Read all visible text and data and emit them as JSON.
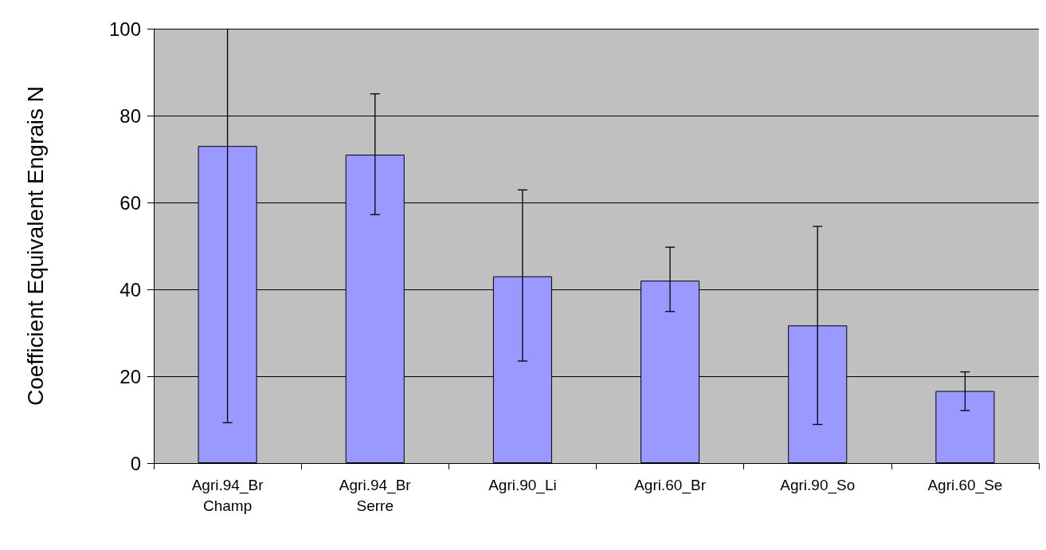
{
  "chart_data": {
    "type": "bar",
    "ylabel": "Coefficient Equivalent Engrais N",
    "categories": [
      "Agri.94_Br\nChamp",
      "Agri.94_Br\nSerre",
      "Agri.90_Li",
      "Agri.60_Br",
      "Agri.90_So",
      "Agri.60_Se"
    ],
    "values": [
      73,
      71,
      43,
      42,
      31.7,
      16.6
    ],
    "errors": [
      [
        9.3,
        100
      ],
      [
        57.2,
        85
      ],
      [
        23.5,
        62.9
      ],
      [
        34.9,
        49.7
      ],
      [
        8.9,
        54.5
      ],
      [
        12.1,
        21
      ]
    ],
    "color": "#9999ff",
    "ylim": [
      0,
      100
    ],
    "yticks": [
      0,
      20,
      40,
      60,
      80,
      100
    ],
    "grid": "y"
  }
}
